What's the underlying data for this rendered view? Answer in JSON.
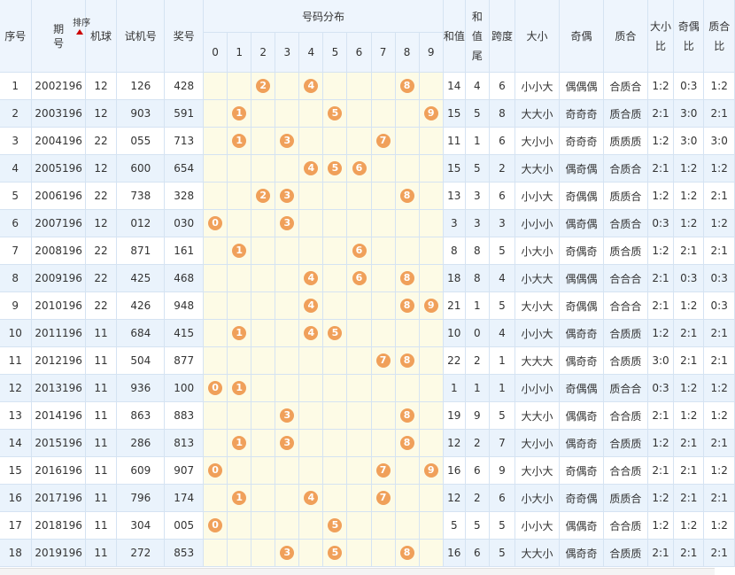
{
  "headers": {
    "seq": "序号",
    "period_a": "期",
    "period_b": "号",
    "sort": "排序",
    "machine": "机球",
    "test_no": "试机号",
    "prize_no": "奖号",
    "dist_title": "号码分布",
    "digits": [
      "0",
      "1",
      "2",
      "3",
      "4",
      "5",
      "6",
      "7",
      "8",
      "9"
    ],
    "sum_val": "和值",
    "sum_tail_a": "和",
    "sum_tail_b": "值",
    "sum_tail_c": "尾",
    "span": "跨度",
    "big_small": "大小",
    "odd_even": "奇偶",
    "prime": "质合",
    "bs_ratio_a": "大小",
    "bs_ratio_b": "比",
    "oe_ratio_a": "奇偶",
    "oe_ratio_b": "比",
    "pc_ratio_a": "质合",
    "pc_ratio_b": "比"
  },
  "rows": [
    {
      "seq": "1",
      "period": "2002196",
      "machine": "12",
      "test": "126",
      "prize": "428",
      "balls": [
        "2",
        "4",
        "8"
      ],
      "sum": "14",
      "tail": "4",
      "span": "6",
      "bs": "小小大",
      "oe": "偶偶偶",
      "pc": "合质合",
      "bsr": "1:2",
      "oer": "0:3",
      "pcr": "1:2"
    },
    {
      "seq": "2",
      "period": "2003196",
      "machine": "12",
      "test": "903",
      "prize": "591",
      "balls": [
        "1",
        "5",
        "9"
      ],
      "sum": "15",
      "tail": "5",
      "span": "8",
      "bs": "大大小",
      "oe": "奇奇奇",
      "pc": "质合质",
      "bsr": "2:1",
      "oer": "3:0",
      "pcr": "2:1"
    },
    {
      "seq": "3",
      "period": "2004196",
      "machine": "22",
      "test": "055",
      "prize": "713",
      "balls": [
        "1",
        "3",
        "7"
      ],
      "sum": "11",
      "tail": "1",
      "span": "6",
      "bs": "大小小",
      "oe": "奇奇奇",
      "pc": "质质质",
      "bsr": "1:2",
      "oer": "3:0",
      "pcr": "3:0"
    },
    {
      "seq": "4",
      "period": "2005196",
      "machine": "12",
      "test": "600",
      "prize": "654",
      "balls": [
        "4",
        "5",
        "6"
      ],
      "sum": "15",
      "tail": "5",
      "span": "2",
      "bs": "大大小",
      "oe": "偶奇偶",
      "pc": "合质合",
      "bsr": "2:1",
      "oer": "1:2",
      "pcr": "1:2"
    },
    {
      "seq": "5",
      "period": "2006196",
      "machine": "22",
      "test": "738",
      "prize": "328",
      "balls": [
        "2",
        "3",
        "8"
      ],
      "sum": "13",
      "tail": "3",
      "span": "6",
      "bs": "小小大",
      "oe": "奇偶偶",
      "pc": "质质合",
      "bsr": "1:2",
      "oer": "1:2",
      "pcr": "2:1"
    },
    {
      "seq": "6",
      "period": "2007196",
      "machine": "12",
      "test": "012",
      "prize": "030",
      "balls": [
        "0",
        "3"
      ],
      "sum": "3",
      "tail": "3",
      "span": "3",
      "bs": "小小小",
      "oe": "偶奇偶",
      "pc": "合质合",
      "bsr": "0:3",
      "oer": "1:2",
      "pcr": "1:2"
    },
    {
      "seq": "7",
      "period": "2008196",
      "machine": "22",
      "test": "871",
      "prize": "161",
      "balls": [
        "1",
        "6"
      ],
      "sum": "8",
      "tail": "8",
      "span": "5",
      "bs": "小大小",
      "oe": "奇偶奇",
      "pc": "质合质",
      "bsr": "1:2",
      "oer": "2:1",
      "pcr": "2:1"
    },
    {
      "seq": "8",
      "period": "2009196",
      "machine": "22",
      "test": "425",
      "prize": "468",
      "balls": [
        "4",
        "6",
        "8"
      ],
      "sum": "18",
      "tail": "8",
      "span": "4",
      "bs": "小大大",
      "oe": "偶偶偶",
      "pc": "合合合",
      "bsr": "2:1",
      "oer": "0:3",
      "pcr": "0:3"
    },
    {
      "seq": "9",
      "period": "2010196",
      "machine": "22",
      "test": "426",
      "prize": "948",
      "balls": [
        "4",
        "8",
        "9"
      ],
      "sum": "21",
      "tail": "1",
      "span": "5",
      "bs": "大小大",
      "oe": "奇偶偶",
      "pc": "合合合",
      "bsr": "2:1",
      "oer": "1:2",
      "pcr": "0:3"
    },
    {
      "seq": "10",
      "period": "2011196",
      "machine": "11",
      "test": "684",
      "prize": "415",
      "balls": [
        "1",
        "4",
        "5"
      ],
      "sum": "10",
      "tail": "0",
      "span": "4",
      "bs": "小小大",
      "oe": "偶奇奇",
      "pc": "合质质",
      "bsr": "1:2",
      "oer": "2:1",
      "pcr": "2:1"
    },
    {
      "seq": "11",
      "period": "2012196",
      "machine": "11",
      "test": "504",
      "prize": "877",
      "balls": [
        "7",
        "8"
      ],
      "sum": "22",
      "tail": "2",
      "span": "1",
      "bs": "大大大",
      "oe": "偶奇奇",
      "pc": "合质质",
      "bsr": "3:0",
      "oer": "2:1",
      "pcr": "2:1"
    },
    {
      "seq": "12",
      "period": "2013196",
      "machine": "11",
      "test": "936",
      "prize": "100",
      "balls": [
        "0",
        "1"
      ],
      "sum": "1",
      "tail": "1",
      "span": "1",
      "bs": "小小小",
      "oe": "奇偶偶",
      "pc": "质合合",
      "bsr": "0:3",
      "oer": "1:2",
      "pcr": "1:2"
    },
    {
      "seq": "13",
      "period": "2014196",
      "machine": "11",
      "test": "863",
      "prize": "883",
      "balls": [
        "3",
        "8"
      ],
      "sum": "19",
      "tail": "9",
      "span": "5",
      "bs": "大大小",
      "oe": "偶偶奇",
      "pc": "合合质",
      "bsr": "2:1",
      "oer": "1:2",
      "pcr": "1:2"
    },
    {
      "seq": "14",
      "period": "2015196",
      "machine": "11",
      "test": "286",
      "prize": "813",
      "balls": [
        "1",
        "3",
        "8"
      ],
      "sum": "12",
      "tail": "2",
      "span": "7",
      "bs": "大小小",
      "oe": "偶奇奇",
      "pc": "合质质",
      "bsr": "1:2",
      "oer": "2:1",
      "pcr": "2:1"
    },
    {
      "seq": "15",
      "period": "2016196",
      "machine": "11",
      "test": "609",
      "prize": "907",
      "balls": [
        "0",
        "7",
        "9"
      ],
      "sum": "16",
      "tail": "6",
      "span": "9",
      "bs": "大小大",
      "oe": "奇偶奇",
      "pc": "合合质",
      "bsr": "2:1",
      "oer": "2:1",
      "pcr": "1:2"
    },
    {
      "seq": "16",
      "period": "2017196",
      "machine": "11",
      "test": "796",
      "prize": "174",
      "balls": [
        "1",
        "4",
        "7"
      ],
      "sum": "12",
      "tail": "2",
      "span": "6",
      "bs": "小大小",
      "oe": "奇奇偶",
      "pc": "质质合",
      "bsr": "1:2",
      "oer": "2:1",
      "pcr": "2:1"
    },
    {
      "seq": "17",
      "period": "2018196",
      "machine": "11",
      "test": "304",
      "prize": "005",
      "balls": [
        "0",
        "5"
      ],
      "sum": "5",
      "tail": "5",
      "span": "5",
      "bs": "小小大",
      "oe": "偶偶奇",
      "pc": "合合质",
      "bsr": "1:2",
      "oer": "1:2",
      "pcr": "1:2"
    },
    {
      "seq": "18",
      "period": "2019196",
      "machine": "11",
      "test": "272",
      "prize": "853",
      "balls": [
        "3",
        "5",
        "8"
      ],
      "sum": "16",
      "tail": "6",
      "span": "5",
      "bs": "大大小",
      "oe": "偶奇奇",
      "pc": "合质质",
      "bsr": "2:1",
      "oer": "2:1",
      "pcr": "2:1"
    }
  ],
  "colors": {
    "ball": "#f0a05a",
    "header_bg": "#eef5fd",
    "row_alt": "#eaf3fc",
    "dist_bg": "#fdfbe6",
    "sort_arrow": "#cc0000"
  }
}
